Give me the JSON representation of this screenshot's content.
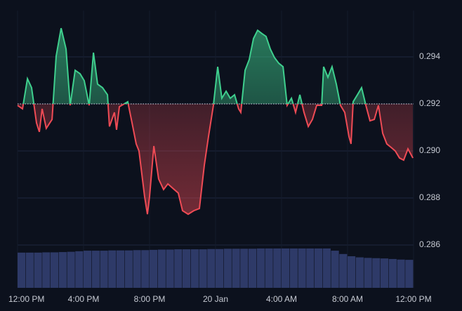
{
  "chart_data": {
    "type": "line",
    "xlim": [
      0,
      24
    ],
    "xticks": [
      {
        "value": 0,
        "label": "12:00 PM"
      },
      {
        "value": 4,
        "label": "4:00 PM"
      },
      {
        "value": 8,
        "label": "8:00 PM"
      },
      {
        "value": 12,
        "label": "20 Jan"
      },
      {
        "value": 16,
        "label": "4:00 AM"
      },
      {
        "value": 20,
        "label": "8:00 AM"
      },
      {
        "value": 24,
        "label": "12:00 PM"
      }
    ],
    "ylim": [
      0.28418,
      0.29597
    ],
    "yticks": [
      0.294,
      0.292,
      0.29,
      0.288,
      0.286
    ],
    "ytick_labels": [
      "0.294",
      "0.292",
      "0.290",
      "0.288",
      "0.286"
    ],
    "baseline": 0.292,
    "up_color": "#3fcf8e",
    "down_color": "#ef4b55",
    "grid": true,
    "x": [
      0,
      0.3,
      0.6,
      0.85,
      1.15,
      1.32,
      1.49,
      1.74,
      2.09,
      2.34,
      2.64,
      2.94,
      3.19,
      3.49,
      3.79,
      4.04,
      4.34,
      4.6,
      4.85,
      5.15,
      5.45,
      5.57,
      5.87,
      6.0,
      6.17,
      6.68,
      6.94,
      7.19,
      7.36,
      7.7,
      7.87,
      8.0,
      8.26,
      8.55,
      8.85,
      9.11,
      9.4,
      9.74,
      10.0,
      10.34,
      10.68,
      11.02,
      11.32,
      11.57,
      11.87,
      12.13,
      12.38,
      12.64,
      12.89,
      13.15,
      13.4,
      13.53,
      13.79,
      14.04,
      14.3,
      14.55,
      14.81,
      15.06,
      15.32,
      15.57,
      15.83,
      16.09,
      16.34,
      16.6,
      16.85,
      17.11,
      17.36,
      17.62,
      17.87,
      18.13,
      18.43,
      18.55,
      18.81,
      19.06,
      19.32,
      19.57,
      19.83,
      20.09,
      20.21,
      20.34,
      20.6,
      20.85,
      21.11,
      21.36,
      21.62,
      21.87,
      22.13,
      22.38,
      22.64,
      22.89,
      23.15,
      23.4,
      23.66,
      23.96
    ],
    "series": [
      {
        "values": [
          0.29194,
          0.29179,
          0.29307,
          0.29269,
          0.29119,
          0.29081,
          0.29179,
          0.29096,
          0.29134,
          0.29403,
          0.29522,
          0.29433,
          0.29194,
          0.29343,
          0.29328,
          0.29299,
          0.29194,
          0.29418,
          0.29284,
          0.29269,
          0.29239,
          0.29104,
          0.29164,
          0.2909,
          0.29188,
          0.29209,
          0.29119,
          0.2903,
          0.29,
          0.28806,
          0.28731,
          0.28806,
          0.29021,
          0.28881,
          0.28836,
          0.2886,
          0.28842,
          0.28821,
          0.28746,
          0.28731,
          0.28746,
          0.28755,
          0.2894,
          0.2906,
          0.29194,
          0.29358,
          0.29224,
          0.29254,
          0.29224,
          0.29239,
          0.29179,
          0.29164,
          0.29343,
          0.29388,
          0.29478,
          0.29513,
          0.29499,
          0.29487,
          0.29433,
          0.29397,
          0.29373,
          0.29358,
          0.29194,
          0.29224,
          0.29164,
          0.29239,
          0.29164,
          0.29104,
          0.29134,
          0.29194,
          0.29194,
          0.29358,
          0.29313,
          0.29358,
          0.29284,
          0.29194,
          0.29164,
          0.2906,
          0.2903,
          0.29209,
          0.29239,
          0.29269,
          0.29194,
          0.29128,
          0.29134,
          0.29194,
          0.29075,
          0.2903,
          0.29015,
          0.29,
          0.2897,
          0.28961,
          0.29009,
          0.2897
        ]
      }
    ],
    "y2lim": [
      0,
      100
    ],
    "volume": {
      "axis": "y2",
      "color": "#2e3a68",
      "x": [
        0,
        0.5,
        1,
        1.5,
        2,
        2.5,
        3,
        3.5,
        4,
        4.5,
        5,
        5.5,
        6,
        6.5,
        7,
        7.5,
        8,
        8.5,
        9,
        9.5,
        10,
        10.5,
        11,
        11.5,
        12,
        12.5,
        13,
        13.5,
        14,
        14.5,
        15,
        15.5,
        16,
        16.5,
        17,
        17.5,
        18,
        18.5,
        19,
        19.5,
        20,
        20.5,
        21,
        21.5,
        22,
        22.5,
        23,
        23.5
      ],
      "values": [
        12.7,
        12.7,
        12.7,
        12.8,
        12.8,
        12.9,
        13.0,
        13.2,
        13.4,
        13.4,
        13.4,
        13.5,
        13.5,
        13.5,
        13.6,
        13.6,
        13.7,
        13.8,
        13.8,
        13.9,
        13.9,
        13.9,
        13.9,
        14.0,
        14.0,
        14.1,
        14.1,
        14.1,
        14.1,
        14.2,
        14.2,
        14.2,
        14.2,
        14.2,
        14.2,
        14.2,
        14.2,
        14.2,
        13.4,
        12.2,
        11.4,
        11.0,
        10.8,
        10.7,
        10.6,
        10.4,
        10.2,
        10.1
      ]
    }
  }
}
